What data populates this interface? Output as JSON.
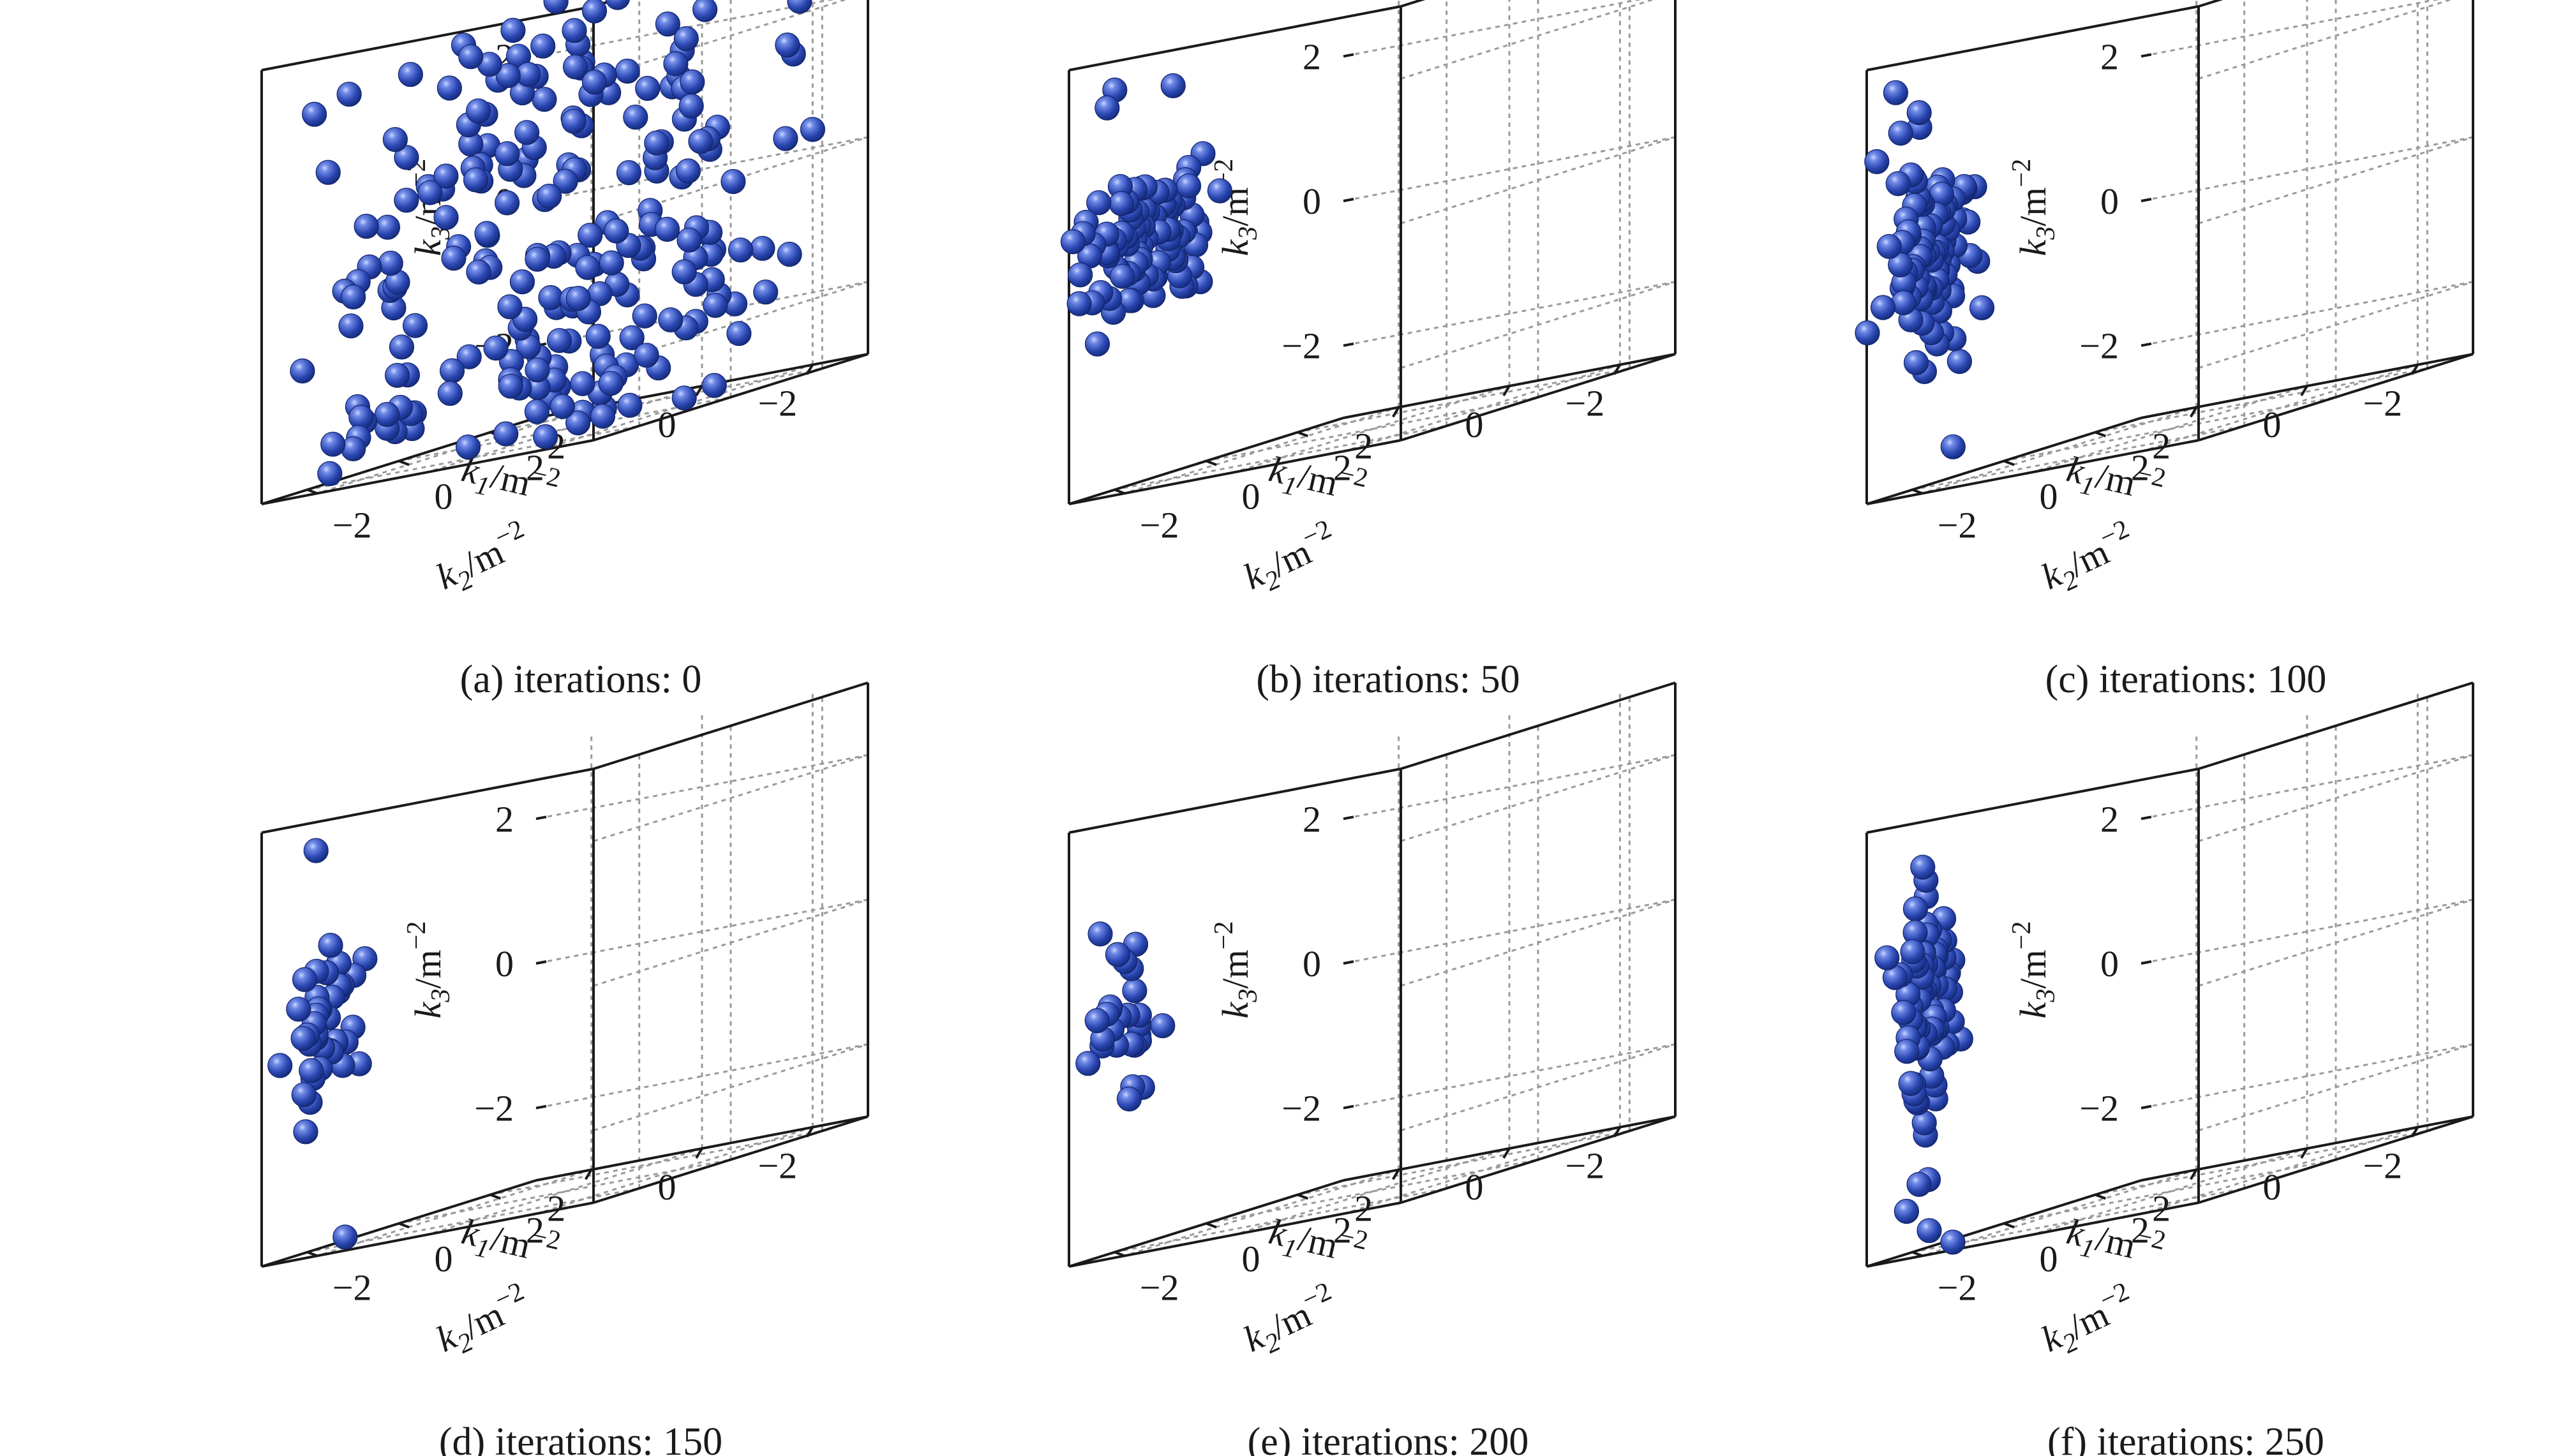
{
  "figure": {
    "panels": [
      {
        "caption": "(a) iterations: 0"
      },
      {
        "caption": "(b) iterations: 50"
      },
      {
        "caption": "(c) iterations: 100"
      },
      {
        "caption": "(d) iterations: 150"
      },
      {
        "caption": "(e) iterations: 200"
      },
      {
        "caption": "(f) iterations: 250"
      }
    ]
  },
  "axes": {
    "x_label": "k1/m−2",
    "x_var": "k",
    "x_sub": "1",
    "x_unit": "/m",
    "x_exp": "−2",
    "y_label": "k2/m−2",
    "y_var": "k",
    "y_sub": "2",
    "y_unit": "/m",
    "y_exp": "−2",
    "z_label": "k3/m−2",
    "z_var": "k",
    "z_sub": "3",
    "z_unit": "/m",
    "z_exp": "−2",
    "ticks": [
      "−2",
      "0",
      "2"
    ]
  },
  "colors": {
    "marker": "#2a46b0",
    "marker_highlight": "#8fa6f0",
    "axis": "#1a1a1a",
    "grid": "#9a9a9a"
  },
  "chart_data": [
    {
      "type": "scatter3d",
      "title": "(a) iterations: 0",
      "xlabel": "k1/m−2",
      "ylabel": "k2/m−2",
      "zlabel": "k3/m−2",
      "xlim": [
        -3,
        3
      ],
      "ylim": [
        -3,
        3
      ],
      "zlim": [
        -3,
        3
      ],
      "x_ticks": [
        -2,
        0,
        2
      ],
      "y_ticks": [
        -2,
        0,
        2
      ],
      "z_ticks": [
        -2,
        0,
        2
      ],
      "grid": true,
      "marker": "sphere",
      "n_points_approx": 230,
      "distribution": "uniform random over the full cube [-3,3]^3",
      "points": []
    },
    {
      "type": "scatter3d",
      "title": "(b) iterations: 50",
      "xlabel": "k1/m−2",
      "ylabel": "k2/m−2",
      "zlabel": "k3/m−2",
      "xlim": [
        -3,
        3
      ],
      "ylim": [
        -3,
        3
      ],
      "zlim": [
        -3,
        3
      ],
      "x_ticks": [
        -2,
        0,
        2
      ],
      "y_ticks": [
        -2,
        0,
        2
      ],
      "z_ticks": [
        -2,
        0,
        2
      ],
      "grid": true,
      "marker": "sphere",
      "points": []
    },
    {
      "type": "scatter3d",
      "title": "(c) iterations: 100",
      "xlabel": "k1/m−2",
      "ylabel": "k2/m−2",
      "zlabel": "k3/m−2",
      "xlim": [
        -3,
        3
      ],
      "ylim": [
        -3,
        3
      ],
      "zlim": [
        -3,
        3
      ],
      "x_ticks": [
        -2,
        0,
        2
      ],
      "y_ticks": [
        -2,
        0,
        2
      ],
      "z_ticks": [
        -2,
        0,
        2
      ],
      "grid": true,
      "marker": "sphere",
      "points": []
    },
    {
      "type": "scatter3d",
      "title": "(d) iterations: 150",
      "xlabel": "k1/m−2",
      "ylabel": "k2/m−2",
      "zlabel": "k3/m−2",
      "xlim": [
        -3,
        3
      ],
      "ylim": [
        -3,
        3
      ],
      "zlim": [
        -3,
        3
      ],
      "x_ticks": [
        -2,
        0,
        2
      ],
      "y_ticks": [
        -2,
        0,
        2
      ],
      "z_ticks": [
        -2,
        0,
        2
      ],
      "grid": true,
      "marker": "sphere",
      "points": []
    },
    {
      "type": "scatter3d",
      "title": "(e) iterations: 200",
      "xlabel": "k1/m−2",
      "ylabel": "k2/m−2",
      "zlabel": "k3/m−2",
      "xlim": [
        -3,
        3
      ],
      "ylim": [
        -3,
        3
      ],
      "zlim": [
        -3,
        3
      ],
      "x_ticks": [
        -2,
        0,
        2
      ],
      "y_ticks": [
        -2,
        0,
        2
      ],
      "z_ticks": [
        -2,
        0,
        2
      ],
      "grid": true,
      "marker": "sphere",
      "points": []
    },
    {
      "type": "scatter3d",
      "title": "(f) iterations: 250",
      "xlabel": "k1/m−2",
      "ylabel": "k2/m−2",
      "zlabel": "k3/m−2",
      "xlim": [
        -3,
        3
      ],
      "ylim": [
        -3,
        3
      ],
      "zlim": [
        -3,
        3
      ],
      "x_ticks": [
        -2,
        0,
        2
      ],
      "y_ticks": [
        -2,
        0,
        2
      ],
      "z_ticks": [
        -2,
        0,
        2
      ],
      "grid": true,
      "marker": "sphere",
      "points": []
    }
  ]
}
